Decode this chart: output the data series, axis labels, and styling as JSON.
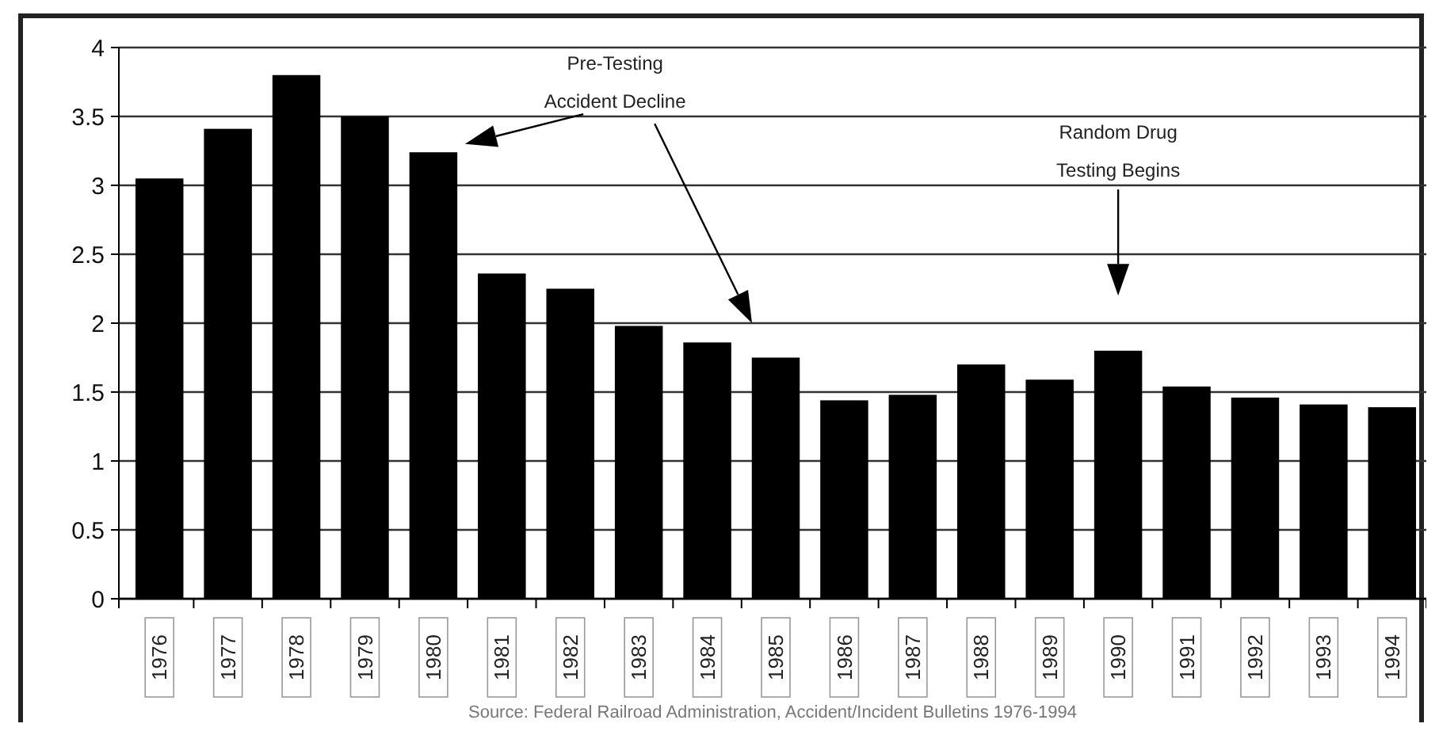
{
  "chart_data": {
    "type": "bar",
    "categories": [
      "1976",
      "1977",
      "1978",
      "1979",
      "1980",
      "1981",
      "1982",
      "1983",
      "1984",
      "1985",
      "1986",
      "1987",
      "1988",
      "1989",
      "1990",
      "1991",
      "1992",
      "1993",
      "1994"
    ],
    "values": [
      3.05,
      3.41,
      3.8,
      3.5,
      3.24,
      2.36,
      2.25,
      1.98,
      1.86,
      1.75,
      1.44,
      1.48,
      1.7,
      1.59,
      1.8,
      1.54,
      1.46,
      1.41,
      1.39
    ],
    "color": "#000000",
    "ylim": [
      0,
      4
    ],
    "yticks": [
      0,
      0.5,
      1,
      1.5,
      2,
      2.5,
      3,
      3.5,
      4
    ],
    "grid": "y",
    "annotations": [
      "Pre-Testing Accident Decline",
      "Random Drug Testing Begins",
      "Source: Federal Railroad Administration, Accident/Incident Bulletins 1976-1994"
    ]
  }
}
